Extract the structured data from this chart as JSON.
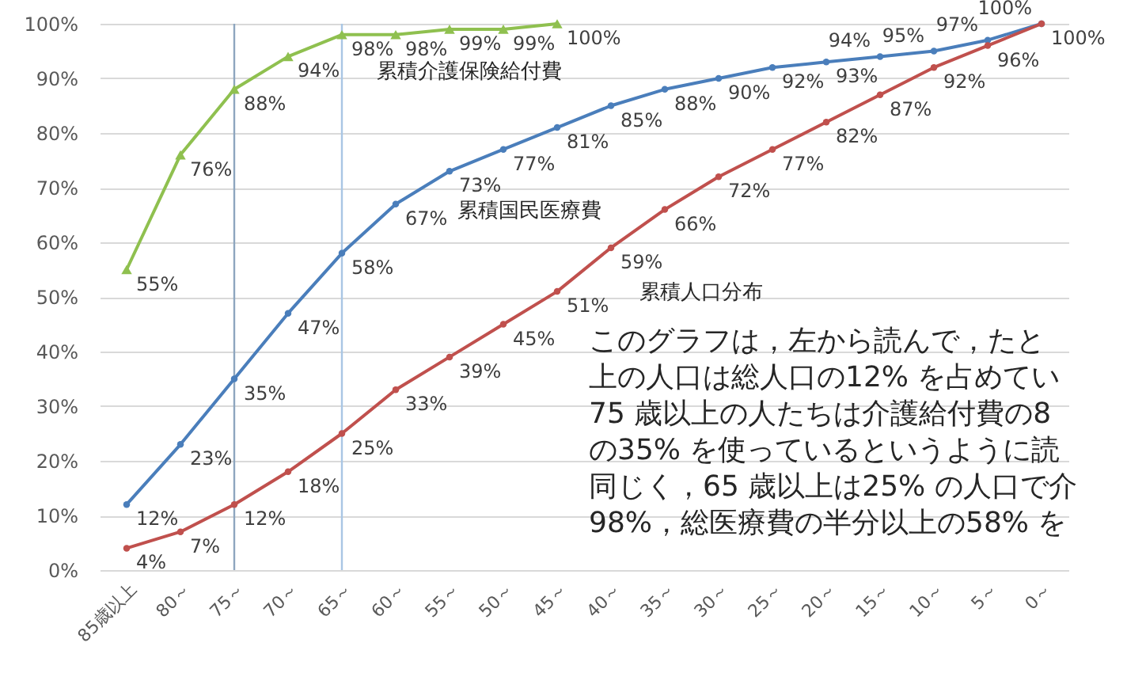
{
  "chart_data": {
    "type": "line",
    "categories": [
      "85歳以上",
      "80～",
      "75～",
      "70～",
      "65～",
      "60～",
      "55～",
      "50～",
      "45～",
      "40～",
      "35～",
      "30～",
      "25～",
      "20～",
      "15～",
      "10～",
      "5～",
      "0～"
    ],
    "series": [
      {
        "name": "累積介護保険給付費",
        "color": "#8fc04f",
        "marker": "triangle",
        "values": [
          55,
          76,
          88,
          94,
          98,
          98,
          99,
          99,
          100,
          null,
          null,
          null,
          null,
          null,
          null,
          null,
          null,
          null
        ],
        "value_labels": [
          "55%",
          "76%",
          "88%",
          "94%",
          "98%",
          "98%",
          "99%",
          "99%",
          "100%",
          null,
          null,
          null,
          null,
          null,
          null,
          null,
          null,
          null
        ]
      },
      {
        "name": "累積国民医療費",
        "color": "#4a7ebb",
        "values": [
          12,
          23,
          35,
          47,
          58,
          67,
          73,
          77,
          81,
          85,
          88,
          90,
          92,
          93,
          94,
          95,
          97,
          100
        ],
        "value_labels": [
          "12%",
          "23%",
          "35%",
          "47%",
          "58%",
          "67%",
          "73%",
          "77%",
          "81%",
          "85%",
          "88%",
          "90%",
          "92%",
          "93%",
          "94%",
          "95%",
          "97%",
          "100%"
        ]
      },
      {
        "name": "累積人口分布",
        "color": "#c0504d",
        "values": [
          4,
          7,
          12,
          18,
          25,
          33,
          39,
          45,
          51,
          59,
          66,
          72,
          77,
          82,
          87,
          92,
          96,
          100
        ],
        "value_labels": [
          "4%",
          "7%",
          "12%",
          "18%",
          "25%",
          "33%",
          "39%",
          "45%",
          "51%",
          "59%",
          "66%",
          "72%",
          "77%",
          "82%",
          "87%",
          "92%",
          "96%",
          "100%"
        ]
      }
    ],
    "ylim": [
      0,
      100
    ],
    "yticks": [
      {
        "value": 0,
        "label": "0%"
      },
      {
        "value": 10,
        "label": "10%"
      },
      {
        "value": 20,
        "label": "20%"
      },
      {
        "value": 30,
        "label": "30%"
      },
      {
        "value": 40,
        "label": "40%"
      },
      {
        "value": 50,
        "label": "50%"
      },
      {
        "value": 60,
        "label": "60%"
      },
      {
        "value": 70,
        "label": "70%"
      },
      {
        "value": 80,
        "label": "80%"
      },
      {
        "value": 90,
        "label": "90%"
      },
      {
        "value": 100,
        "label": "100%"
      }
    ],
    "grid": "y",
    "marker": "circle",
    "ref_lines": [
      {
        "axis": "x",
        "value": "75～",
        "color": "#8ea6bf"
      },
      {
        "axis": "x",
        "value": "65～",
        "color": "#a9c6e4"
      }
    ],
    "annotations": [
      "このグラフは，左から読んで，たと",
      "上の人口は総人口の12% を占めてい",
      "75 歳以上の人たちは介護給付費の8",
      "の35% を使っているというように読",
      "同じく，65 歳以上は25% の人口で介",
      "98%，総医療費の半分以上の58% を"
    ]
  }
}
